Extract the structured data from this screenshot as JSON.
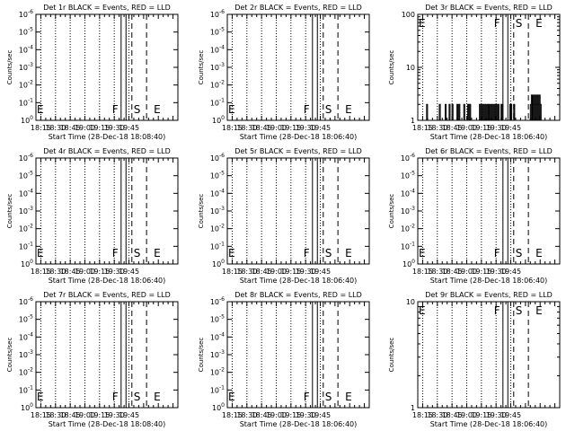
{
  "x_tick_labels": [
    "18:15",
    "18:30",
    "18:45",
    "19:00",
    "19:15",
    "19:30",
    "19:45"
  ],
  "x_range_minutes": [
    1045,
    1190
  ],
  "marker_lines": {
    "solid": [
      1132,
      1137
    ],
    "long_dash": [
      1143,
      1158
    ],
    "dotted": [
      1050,
      1065,
      1080,
      1095,
      1110,
      1125,
      1140,
      1155,
      1170,
      1185
    ]
  },
  "marker_labels": {
    "left_E": "E",
    "F": "F",
    "S": "S",
    "right_E": "E"
  },
  "ylabel": "Counts/sec",
  "xlabel": "Start Time (28-Dec-18 18:08:40)",
  "chart_data": [
    {
      "type": "line",
      "title": "Det 1r BLACK = Events, RED = LLD",
      "xlabel": "Start Time (28-Dec-18 18:08:40)",
      "ylabel": "Counts/sec",
      "yscale": "log",
      "ylim_exp": [
        0,
        -6
      ],
      "yticks": [
        {
          "b": "10",
          "e": "0"
        },
        {
          "b": "10",
          "e": "-1"
        },
        {
          "b": "10",
          "e": "-2"
        },
        {
          "b": "10",
          "e": "-3"
        },
        {
          "b": "10",
          "e": "-4"
        },
        {
          "b": "10",
          "e": "-5"
        },
        {
          "b": "10",
          "e": "-6"
        }
      ],
      "series": []
    },
    {
      "type": "line",
      "title": "Det 2r BLACK = Events, RED = LLD",
      "xlabel": "Start Time (28-Dec-18 18:06:40)",
      "ylabel": "Counts/sec",
      "yscale": "log",
      "ylim_exp": [
        0,
        -6
      ],
      "yticks": [
        {
          "b": "10",
          "e": "0"
        },
        {
          "b": "10",
          "e": "-1"
        },
        {
          "b": "10",
          "e": "-2"
        },
        {
          "b": "10",
          "e": "-3"
        },
        {
          "b": "10",
          "e": "-4"
        },
        {
          "b": "10",
          "e": "-5"
        },
        {
          "b": "10",
          "e": "-6"
        }
      ],
      "series": []
    },
    {
      "type": "line",
      "title": "Det 3r BLACK = Events, RED = LLD",
      "xlabel": "Start Time (28-Dec-18 18:06:40)",
      "ylabel": "Counts/sec",
      "yscale": "log",
      "ylim_exp": [
        0,
        2
      ],
      "yticks": [
        {
          "b": "1",
          "e": ""
        },
        {
          "b": "10",
          "e": ""
        },
        {
          "b": "100",
          "e": ""
        }
      ],
      "series": [
        {
          "values_x": [
            1050,
            1052,
            1054,
            1056,
            1058,
            1060,
            1062,
            1065,
            1067,
            1069,
            1071,
            1073,
            1074,
            1075,
            1076,
            1077,
            1078,
            1079,
            1080,
            1081,
            1082,
            1083,
            1084,
            1085,
            1086,
            1087,
            1088,
            1089,
            1090,
            1091,
            1092,
            1093,
            1094,
            1095,
            1096,
            1097,
            1098,
            1099,
            1100,
            1101,
            1102,
            1104,
            1106,
            1108,
            1109,
            1110,
            1111,
            1112,
            1113,
            1114,
            1115,
            1116,
            1117,
            1118,
            1119,
            1120,
            1121,
            1122,
            1123,
            1124,
            1125,
            1126,
            1127,
            1128,
            1129,
            1130,
            1131,
            1138,
            1139,
            1140,
            1141,
            1142,
            1143,
            1144,
            1145,
            1146,
            1147,
            1150,
            1154,
            1158,
            1160,
            1161,
            1162,
            1163,
            1164,
            1165,
            1166,
            1167,
            1168,
            1169,
            1170
          ],
          "values_y": [
            1,
            1,
            2,
            1,
            1,
            1,
            1,
            1,
            2,
            1,
            1,
            2,
            1,
            1,
            1,
            2,
            1,
            1,
            2,
            1,
            1,
            1,
            1,
            2,
            1,
            2,
            1,
            1,
            1,
            1,
            2,
            1,
            1,
            1,
            2,
            1,
            2,
            1,
            1,
            1,
            1,
            1,
            1,
            2,
            1,
            2,
            1,
            2,
            1,
            2,
            1,
            2,
            2,
            1,
            2,
            2,
            1,
            2,
            1,
            2,
            2,
            1,
            2,
            1,
            1,
            2,
            2,
            1,
            2,
            2,
            1,
            1,
            2,
            1,
            1,
            1,
            1,
            1,
            1,
            1,
            2,
            3,
            2,
            3,
            2,
            3,
            2,
            3,
            2,
            3,
            2
          ]
        }
      ]
    },
    {
      "type": "line",
      "title": "Det 4r BLACK = Events, RED = LLD",
      "xlabel": "Start Time (28-Dec-18 18:06:40)",
      "ylabel": "Counts/sec",
      "yscale": "log",
      "ylim_exp": [
        0,
        -6
      ],
      "yticks": [
        {
          "b": "10",
          "e": "0"
        },
        {
          "b": "10",
          "e": "-1"
        },
        {
          "b": "10",
          "e": "-2"
        },
        {
          "b": "10",
          "e": "-3"
        },
        {
          "b": "10",
          "e": "-4"
        },
        {
          "b": "10",
          "e": "-5"
        },
        {
          "b": "10",
          "e": "-6"
        }
      ],
      "series": []
    },
    {
      "type": "line",
      "title": "Det 5r BLACK = Events, RED = LLD",
      "xlabel": "Start Time (28-Dec-18 18:06:40)",
      "ylabel": "Counts/sec",
      "yscale": "log",
      "ylim_exp": [
        0,
        -6
      ],
      "yticks": [
        {
          "b": "10",
          "e": "0"
        },
        {
          "b": "10",
          "e": "-1"
        },
        {
          "b": "10",
          "e": "-2"
        },
        {
          "b": "10",
          "e": "-3"
        },
        {
          "b": "10",
          "e": "-4"
        },
        {
          "b": "10",
          "e": "-5"
        },
        {
          "b": "10",
          "e": "-6"
        }
      ],
      "series": []
    },
    {
      "type": "line",
      "title": "Det 6r BLACK = Events, RED = LLD",
      "xlabel": "Start Time (28-Dec-18 18:06:40)",
      "ylabel": "Counts/sec",
      "yscale": "log",
      "ylim_exp": [
        0,
        -6
      ],
      "yticks": [
        {
          "b": "10",
          "e": "0"
        },
        {
          "b": "10",
          "e": "-1"
        },
        {
          "b": "10",
          "e": "-2"
        },
        {
          "b": "10",
          "e": "-3"
        },
        {
          "b": "10",
          "e": "-4"
        },
        {
          "b": "10",
          "e": "-5"
        },
        {
          "b": "10",
          "e": "-6"
        }
      ],
      "series": []
    },
    {
      "type": "line",
      "title": "Det 7r BLACK = Events, RED = LLD",
      "xlabel": "Start Time (28-Dec-18 18:08:40)",
      "ylabel": "Counts/sec",
      "yscale": "log",
      "ylim_exp": [
        0,
        -6
      ],
      "yticks": [
        {
          "b": "10",
          "e": "0"
        },
        {
          "b": "10",
          "e": "-1"
        },
        {
          "b": "10",
          "e": "-2"
        },
        {
          "b": "10",
          "e": "-3"
        },
        {
          "b": "10",
          "e": "-4"
        },
        {
          "b": "10",
          "e": "-5"
        },
        {
          "b": "10",
          "e": "-6"
        }
      ],
      "series": []
    },
    {
      "type": "line",
      "title": "Det 8r BLACK = Events, RED = LLD",
      "xlabel": "Start Time (28-Dec-18 18:06:40)",
      "ylabel": "Counts/sec",
      "yscale": "log",
      "ylim_exp": [
        0,
        -6
      ],
      "yticks": [
        {
          "b": "10",
          "e": "0"
        },
        {
          "b": "10",
          "e": "-1"
        },
        {
          "b": "10",
          "e": "-2"
        },
        {
          "b": "10",
          "e": "-3"
        },
        {
          "b": "10",
          "e": "-4"
        },
        {
          "b": "10",
          "e": "-5"
        },
        {
          "b": "10",
          "e": "-6"
        }
      ],
      "series": []
    },
    {
      "type": "line",
      "title": "Det 9r BLACK = Events, RED = LLD",
      "xlabel": "Start Time (28-Dec-18 18:06:40)",
      "ylabel": "Counts/sec",
      "yscale": "log",
      "ylim_exp": [
        0,
        1
      ],
      "yticks": [
        {
          "b": "1",
          "e": ""
        },
        {
          "b": "10",
          "e": ""
        }
      ],
      "series": []
    }
  ]
}
